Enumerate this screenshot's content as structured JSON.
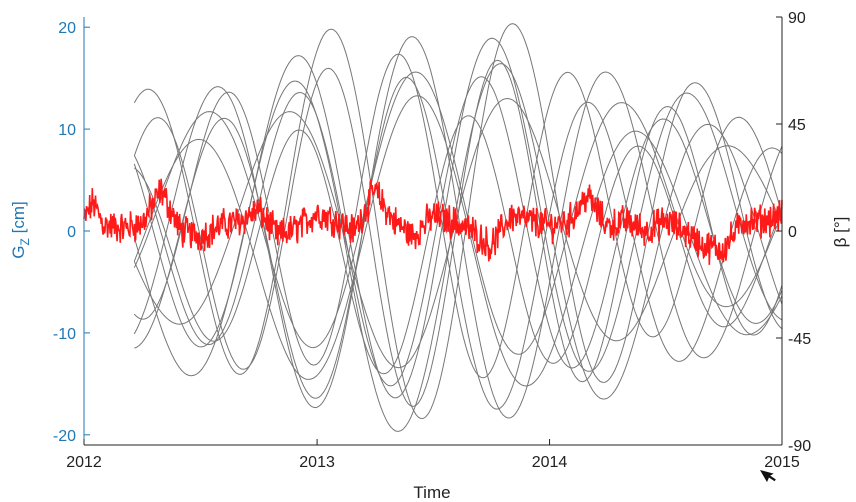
{
  "chart_data": {
    "type": "line",
    "xlabel": "Time",
    "x_ticks": [
      "2012",
      "2013",
      "2014",
      "2015"
    ],
    "xlim": [
      "2012-01-01",
      "2015-01-01"
    ],
    "left_axis": {
      "label_main": "G",
      "label_sub": "Z",
      "label_unit": " [cm]",
      "ylim": [
        -21,
        21
      ],
      "ticks": [
        20,
        10,
        0,
        -10,
        -20
      ],
      "tick_labels": [
        "20",
        "10",
        "0",
        "-10",
        "-20"
      ],
      "color": "#1f77b4"
    },
    "right_axis": {
      "label": "β [°]",
      "ylim": [
        -90,
        90
      ],
      "ticks": [
        90,
        45,
        0,
        -45,
        -90
      ],
      "tick_labels": [
        "90",
        "45",
        "0",
        "-45",
        "-90"
      ],
      "color": "#222222"
    },
    "gz_series": {
      "axis": "left",
      "color": "#ff1a1a",
      "x_range": [
        "2012-01-01",
        "2015-01-01"
      ],
      "approx_points": [
        [
          "2012-01-01",
          1.0
        ],
        [
          "2012-01-15",
          2.8
        ],
        [
          "2012-02-01",
          0.6
        ],
        [
          "2012-03-01",
          0.3
        ],
        [
          "2012-04-01",
          0.7
        ],
        [
          "2012-05-01",
          4.0
        ],
        [
          "2012-06-01",
          0.0
        ],
        [
          "2012-07-01",
          -0.5
        ],
        [
          "2012-08-01",
          0.5
        ],
        [
          "2012-09-01",
          1.0
        ],
        [
          "2012-10-01",
          2.0
        ],
        [
          "2012-11-01",
          -0.5
        ],
        [
          "2012-12-01",
          0.3
        ],
        [
          "2013-01-01",
          1.8
        ],
        [
          "2013-02-01",
          1.0
        ],
        [
          "2013-03-01",
          0.0
        ],
        [
          "2013-04-01",
          4.0
        ],
        [
          "2013-05-01",
          1.0
        ],
        [
          "2013-06-01",
          -0.5
        ],
        [
          "2013-07-01",
          1.5
        ],
        [
          "2013-08-01",
          1.0
        ],
        [
          "2013-09-01",
          0.0
        ],
        [
          "2013-10-01",
          -1.5
        ],
        [
          "2013-11-01",
          1.5
        ],
        [
          "2013-12-01",
          1.0
        ],
        [
          "2014-01-01",
          0.5
        ],
        [
          "2014-02-01",
          1.0
        ],
        [
          "2014-03-01",
          3.5
        ],
        [
          "2014-04-01",
          0.5
        ],
        [
          "2014-05-01",
          1.0
        ],
        [
          "2014-06-01",
          0.0
        ],
        [
          "2014-07-01",
          1.0
        ],
        [
          "2014-08-01",
          0.0
        ],
        [
          "2014-09-01",
          -1.5
        ],
        [
          "2014-10-01",
          -1.8
        ],
        [
          "2014-11-01",
          1.0
        ],
        [
          "2014-12-01",
          1.0
        ],
        [
          "2015-01-01",
          1.5
        ]
      ]
    },
    "beta_series": {
      "axis": "right",
      "color": "#777777",
      "count": 12,
      "x_range": [
        "2012-03-20",
        "2015-01-01"
      ]
    }
  }
}
